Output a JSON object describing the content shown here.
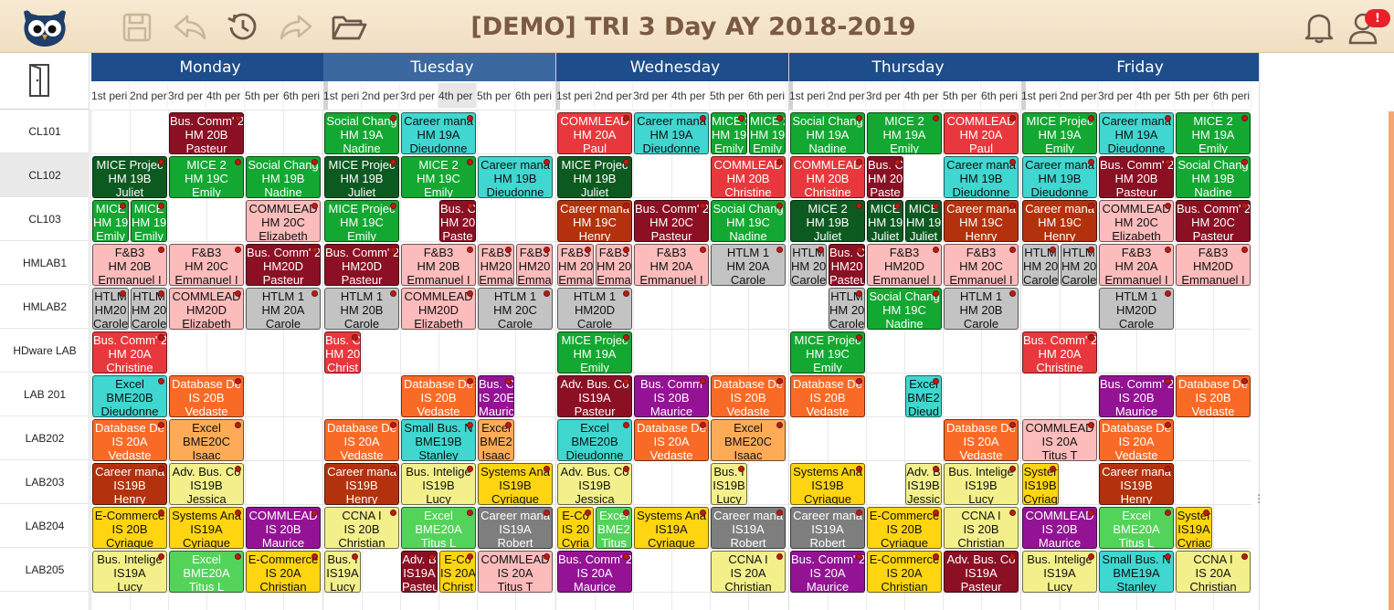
{
  "app": {
    "title": "[DEMO] TRI 3 Day AY 2018-2019",
    "notification_badge": "!"
  },
  "toolbar": [
    "owl-logo-icon",
    "save-icon",
    "undo-icon",
    "history-icon",
    "redo-icon",
    "folder-open-icon",
    "bell-icon",
    "user-icon"
  ],
  "side": {
    "exit_icon": "exit-door-icon"
  },
  "rooms": [
    "CL101",
    "CL102",
    "CL103",
    "HMLAB1",
    "HMLAB2",
    "HDware LAB",
    "LAB 201",
    "LAB202",
    "LAB203",
    "LAB204",
    "LAB205"
  ],
  "selected_room": "CL102",
  "days": [
    "Monday",
    "Tuesday",
    "Wednesday",
    "Thursday",
    "Friday"
  ],
  "selected_day": "Tuesday",
  "periods": [
    "1st peri",
    "2nd peri",
    "3rd per",
    "4th per",
    "5th per",
    "6th peri"
  ],
  "colors": {
    "dark_red": "#8b1024",
    "red": "#e8383d",
    "dark_green": "#0d5a21",
    "green": "#13a832",
    "light_green": "#53d35a",
    "teal": "#3fd7d0",
    "rust": "#b3320d",
    "salmon": "#fcbcbc",
    "gray": "#c3c3c3",
    "dark_gray": "#7e7e7e",
    "orange": "#fa6a27",
    "light_orange": "#fdab57",
    "purple": "#941394",
    "yellow": "#f3f08b",
    "gold": "#ffd511",
    "header_blue": "#1d4d8a"
  },
  "events": [
    [
      "0_2_0_2",
      "dark_red",
      "Bus. Comm' 2",
      "HM 20B",
      "Pasteur"
    ],
    [
      "1_0_0_2",
      "green",
      "Social Chang",
      "HM 19A",
      "Nadine"
    ],
    [
      "1_2_0_2",
      "teal",
      "Career mana",
      "HM 19A",
      "Dieudonne"
    ],
    [
      "2_0_0_2",
      "red",
      "COMMLEAD",
      "HM 20A",
      "Paul"
    ],
    [
      "2_2_0_2",
      "teal",
      "Career mana",
      "HM 19A",
      "Dieudonne"
    ],
    [
      "2_4_0_1",
      "green",
      "MICE 2",
      "HM 19",
      "Emily"
    ],
    [
      "2_5_0_1",
      "green",
      "MICE 2",
      "HM 19",
      "Emily"
    ],
    [
      "3_0_0_2",
      "green",
      "Social Chang",
      "HM 19A",
      "Nadine"
    ],
    [
      "3_2_0_2",
      "green",
      "MICE 2",
      "HM 19A",
      "Emily"
    ],
    [
      "3_4_0_2",
      "red",
      "COMMLEAD",
      "HM 20A",
      "Paul"
    ],
    [
      "4_0_0_2",
      "green",
      "MICE Projec",
      "HM 19A",
      "Emily"
    ],
    [
      "4_2_0_2",
      "teal",
      "Career mana",
      "HM 19A",
      "Dieudonne"
    ],
    [
      "4_4_0_2",
      "green",
      "MICE 2",
      "HM 19A",
      "Emily"
    ],
    [
      "0_0_1_2",
      "dark_green",
      "MICE Projec",
      "HM 19B",
      "Juliet"
    ],
    [
      "0_2_1_2",
      "green",
      "MICE 2",
      "HM 19C",
      "Emily"
    ],
    [
      "0_4_1_2",
      "green",
      "Social Chang",
      "HM 19B",
      "Nadine"
    ],
    [
      "1_0_1_2",
      "dark_green",
      "MICE Projec",
      "HM 19B",
      "Juliet"
    ],
    [
      "1_2_1_2",
      "green",
      "MICE 2",
      "HM 19C",
      "Emily"
    ],
    [
      "1_4_1_2",
      "teal",
      "Career mana",
      "HM 19B",
      "Dieudonne"
    ],
    [
      "2_0_1_2",
      "dark_green",
      "MICE Projec",
      "HM 19B",
      "Juliet"
    ],
    [
      "2_4_1_2",
      "red",
      "COMMLEAD",
      "HM 20B",
      "Christine"
    ],
    [
      "3_0_1_2",
      "red",
      "COMMLEAD",
      "HM 20B",
      "Christine"
    ],
    [
      "3_2_1_1",
      "dark_red",
      "Bus. C",
      "HM 20",
      "Paste"
    ],
    [
      "3_4_1_2",
      "teal",
      "Career mana",
      "HM 19B",
      "Dieudonne"
    ],
    [
      "4_0_1_2",
      "teal",
      "Career mana",
      "HM 19B",
      "Dieudonne"
    ],
    [
      "4_2_1_2",
      "dark_red",
      "Bus. Comm' 2",
      "HM 20B",
      "Pasteur"
    ],
    [
      "4_4_1_2",
      "green",
      "Social Chang",
      "HM 19B",
      "Nadine"
    ],
    [
      "0_0_2_1",
      "green",
      "MICE",
      "HM 19",
      "Emily"
    ],
    [
      "0_1_2_1",
      "green",
      "MICE",
      "HM 19",
      "Emily"
    ],
    [
      "0_4_2_2",
      "salmon",
      "COMMLEAD",
      "HM 20C",
      "Elizabeth"
    ],
    [
      "1_0_2_2",
      "green",
      "MICE Projec",
      "HM 19C",
      "Emily"
    ],
    [
      "1_3_2_1",
      "dark_red",
      "Bus. C",
      "HM 20",
      "Paste"
    ],
    [
      "2_0_2_2",
      "rust",
      "Career mana",
      "HM 19C",
      "Henry"
    ],
    [
      "2_2_2_2",
      "dark_red",
      "Bus. Comm' 2",
      "HM 20C",
      "Pasteur"
    ],
    [
      "2_4_2_2",
      "green",
      "Social Chang",
      "HM 19C",
      "Nadine"
    ],
    [
      "3_0_2_2",
      "dark_green",
      "MICE 2",
      "HM 19B",
      "Juliet"
    ],
    [
      "3_2_2_1",
      "dark_green",
      "MICE",
      "HM 19",
      "Juliet"
    ],
    [
      "3_3_2_1",
      "dark_green",
      "MICE",
      "HM 19",
      "Juliet"
    ],
    [
      "3_4_2_2",
      "rust",
      "Career mana",
      "HM 19C",
      "Henry"
    ],
    [
      "4_0_2_2",
      "rust",
      "Career mana",
      "HM 19C",
      "Henry"
    ],
    [
      "4_2_2_2",
      "salmon",
      "COMMLEAD",
      "HM 20C",
      "Elizabeth"
    ],
    [
      "4_4_2_2",
      "dark_red",
      "Bus. Comm' 2",
      "HM 20C",
      "Pasteur"
    ],
    [
      "0_0_3_2",
      "salmon",
      "F&B3",
      "HM 20B",
      "Emmanuel I"
    ],
    [
      "0_2_3_2",
      "salmon",
      "F&B3",
      "HM 20C",
      "Emmanuel I"
    ],
    [
      "0_4_3_2",
      "dark_red",
      "Bus. Comm' 2",
      "HM20D",
      "Pasteur"
    ],
    [
      "1_0_3_2",
      "dark_red",
      "Bus. Comm' 2",
      "HM20D",
      "Pasteur"
    ],
    [
      "1_2_3_2",
      "salmon",
      "F&B3",
      "HM 20B",
      "Emmanuel I"
    ],
    [
      "1_4_3_1",
      "salmon",
      "F&B3",
      "HM20",
      "Emma"
    ],
    [
      "1_5_3_1",
      "salmon",
      "F&B3",
      "HM20",
      "Emma"
    ],
    [
      "2_0_3_1",
      "salmon",
      "F&B3",
      "HM 20",
      "Emma"
    ],
    [
      "2_1_3_1",
      "salmon",
      "F&B3",
      "HM 20",
      "Emma"
    ],
    [
      "2_2_3_2",
      "salmon",
      "F&B3",
      "HM 20A",
      "Emmanuel I"
    ],
    [
      "2_4_3_2",
      "gray",
      "HTLM 1",
      "HM 20A",
      "Carole"
    ],
    [
      "3_0_3_1",
      "gray",
      "HTLM",
      "HM 20",
      "Carole"
    ],
    [
      "3_1_3_1",
      "dark_red",
      "Bus. C",
      "HM20",
      "Pasteu"
    ],
    [
      "3_2_3_2",
      "salmon",
      "F&B3",
      "HM20D",
      "Emmanuel I"
    ],
    [
      "3_4_3_2",
      "salmon",
      "F&B3",
      "HM 20C",
      "Emmanuel I"
    ],
    [
      "4_0_3_1",
      "gray",
      "HTLM",
      "HM 20",
      "Carole"
    ],
    [
      "4_1_3_1",
      "gray",
      "HTLM",
      "HM 20",
      "Carole"
    ],
    [
      "4_2_3_2",
      "salmon",
      "F&B3",
      "HM 20A",
      "Emmanuel I"
    ],
    [
      "4_4_3_2",
      "salmon",
      "F&B3",
      "HM20D",
      "Emmanuel I"
    ],
    [
      "0_0_4_1",
      "gray",
      "HTLM",
      "HM20",
      "Carole"
    ],
    [
      "0_1_4_1",
      "gray",
      "HTLM",
      "HM 20",
      "Carole"
    ],
    [
      "0_2_4_2",
      "salmon",
      "COMMLEAD",
      "HM20D",
      "Elizabeth"
    ],
    [
      "0_4_4_2",
      "gray",
      "HTLM 1",
      "HM 20A",
      "Carole"
    ],
    [
      "1_0_4_2",
      "gray",
      "HTLM 1",
      "HM 20B",
      "Carole"
    ],
    [
      "1_2_4_2",
      "salmon",
      "COMMLEAD",
      "HM20D",
      "Elizabeth"
    ],
    [
      "1_4_4_2",
      "gray",
      "HTLM 1",
      "HM 20C",
      "Carole"
    ],
    [
      "2_0_4_2",
      "gray",
      "HTLM 1",
      "HM20D",
      "Carole"
    ],
    [
      "3_1_4_1",
      "gray",
      "HTLM",
      "HM 20",
      "Carole"
    ],
    [
      "3_2_4_2",
      "green",
      "Social Chang",
      "HM 19C",
      "Nadine"
    ],
    [
      "3_4_4_2",
      "gray",
      "HTLM 1",
      "HM 20B",
      "Carole"
    ],
    [
      "4_2_4_2",
      "gray",
      "HTLM 1",
      "HM20D",
      "Carole"
    ],
    [
      "0_0_5_2",
      "red",
      "Bus. Comm' 2",
      "HM 20A",
      "Christine"
    ],
    [
      "1_0_5_1",
      "red",
      "Bus. C",
      "HM 20",
      "Christ"
    ],
    [
      "2_0_5_2",
      "green",
      "MICE Projec",
      "HM 19A",
      "Emily"
    ],
    [
      "3_0_5_2",
      "green",
      "MICE Projec",
      "HM 19C",
      "Emily"
    ],
    [
      "4_0_5_2",
      "red",
      "Bus. Comm' 2",
      "HM 20A",
      "Christine"
    ],
    [
      "0_0_6_2",
      "teal",
      "Excel",
      "BME20B",
      "Dieudonne"
    ],
    [
      "0_2_6_2",
      "orange",
      "Database De",
      "IS 20B",
      "Vedaste"
    ],
    [
      "1_2_6_2",
      "orange",
      "Database De",
      "IS 20B",
      "Vedaste"
    ],
    [
      "1_4_6_1",
      "purple",
      "Bus. C",
      "IS 20E",
      "Mauric"
    ],
    [
      "2_0_6_2",
      "dark_red",
      "Adv. Bus. Co",
      "IS19A",
      "Pasteur"
    ],
    [
      "2_2_6_2",
      "purple",
      "Bus. Comm",
      "IS 20B",
      "Maurice"
    ],
    [
      "2_4_6_2",
      "orange",
      "Database De",
      "IS 20B",
      "Vedaste"
    ],
    [
      "3_0_6_2",
      "orange",
      "Database De",
      "IS 20B",
      "Vedaste"
    ],
    [
      "3_3_6_1",
      "teal",
      "Excel",
      "BME2",
      "Dieud"
    ],
    [
      "4_2_6_2",
      "purple",
      "Bus. Comm' 2",
      "IS 20B",
      "Maurice"
    ],
    [
      "4_4_6_2",
      "orange",
      "Database De",
      "IS 20B",
      "Vedaste"
    ],
    [
      "0_0_7_2",
      "orange",
      "Database De",
      "IS 20A",
      "Vedaste"
    ],
    [
      "0_2_7_2",
      "light_orange",
      "Excel",
      "BME20C",
      "Isaac"
    ],
    [
      "1_0_7_2",
      "orange",
      "Database De",
      "IS 20A",
      "Vedaste"
    ],
    [
      "1_2_7_2",
      "teal",
      "Small Bus. N",
      "BME19B",
      "Stanley"
    ],
    [
      "1_4_7_1",
      "light_orange",
      "Excel",
      "BME2",
      "Isaac"
    ],
    [
      "2_0_7_2",
      "teal",
      "Excel",
      "BME20B",
      "Dieudonne"
    ],
    [
      "2_2_7_2",
      "orange",
      "Database De",
      "IS 20A",
      "Vedaste"
    ],
    [
      "2_4_7_2",
      "light_orange",
      "Excel",
      "BME20C",
      "Isaac"
    ],
    [
      "3_4_7_2",
      "orange",
      "Database De",
      "IS 20A",
      "Vedaste"
    ],
    [
      "4_0_7_2",
      "salmon",
      "COMMLEAD",
      "IS 20A",
      "Titus T"
    ],
    [
      "4_2_7_2",
      "orange",
      "Database De",
      "IS 20A",
      "Vedaste"
    ],
    [
      "0_0_8_2",
      "rust",
      "Career mana",
      "IS19B",
      "Henry"
    ],
    [
      "0_2_8_2",
      "yellow",
      "Adv. Bus. Co",
      "IS19B",
      "Jessica"
    ],
    [
      "1_0_8_2",
      "rust",
      "Career mana",
      "IS19B",
      "Henry"
    ],
    [
      "1_2_8_2",
      "yellow",
      "Bus. Intelige",
      "IS19B",
      "Lucy"
    ],
    [
      "1_4_8_2",
      "gold",
      "Systems Ana",
      "IS19B",
      "Cyriaque"
    ],
    [
      "2_0_8_2",
      "yellow",
      "Adv. Bus. Co",
      "IS19B",
      "Jessica"
    ],
    [
      "2_4_8_1",
      "yellow",
      "Bus. I",
      "IS19B",
      "Lucy"
    ],
    [
      "3_0_8_2",
      "gold",
      "Systems Ana",
      "IS19B",
      "Cyriaque"
    ],
    [
      "3_3_8_1",
      "yellow",
      "Adv. B",
      "IS19B",
      "Jessic"
    ],
    [
      "3_4_8_2",
      "yellow",
      "Bus. Intelige",
      "IS19B",
      "Lucy"
    ],
    [
      "4_0_8_1",
      "gold",
      "Syster",
      "IS19B",
      "Cyriaq"
    ],
    [
      "4_2_8_2",
      "rust",
      "Career mana",
      "IS19B",
      "Henry"
    ],
    [
      "0_0_9_2",
      "gold",
      "E-Commerce",
      "IS 20B",
      "Cyriaque"
    ],
    [
      "0_2_9_2",
      "gold",
      "Systems Ana",
      "IS19A",
      "Cyriaque"
    ],
    [
      "0_4_9_2",
      "purple",
      "COMMLEAD",
      "IS 20B",
      "Maurice"
    ],
    [
      "1_0_9_2",
      "yellow",
      "CCNA I",
      "IS 20B",
      "Christian"
    ],
    [
      "1_2_9_2",
      "light_green",
      "Excel",
      "BME20A",
      "Titus L"
    ],
    [
      "1_4_9_2",
      "dark_gray",
      "Career mana",
      "IS19A",
      "Robert"
    ],
    [
      "2_0_9_1",
      "gold",
      "E-Co",
      "IS 20",
      "Cyria"
    ],
    [
      "2_1_9_1",
      "light_green",
      "Excel",
      "BME2",
      "Titus"
    ],
    [
      "2_2_9_2",
      "gold",
      "Systems Ana",
      "IS19A",
      "Cyriaque"
    ],
    [
      "2_4_9_2",
      "dark_gray",
      "Career mana",
      "IS19A",
      "Robert"
    ],
    [
      "3_0_9_2",
      "dark_gray",
      "Career mana",
      "IS19A",
      "Robert"
    ],
    [
      "3_2_9_2",
      "gold",
      "E-Commerce",
      "IS 20B",
      "Cyriaque"
    ],
    [
      "3_4_9_2",
      "yellow",
      "CCNA I",
      "IS 20B",
      "Christian"
    ],
    [
      "4_0_9_2",
      "purple",
      "COMMLEAD",
      "IS 20B",
      "Maurice"
    ],
    [
      "4_2_9_2",
      "light_green",
      "Excel",
      "BME20A",
      "Titus L"
    ],
    [
      "4_4_9_1",
      "gold",
      "Syster",
      "IS19A",
      "Cyriac"
    ],
    [
      "0_0_10_2",
      "yellow",
      "Bus. Intelige",
      "IS19A",
      "Lucy"
    ],
    [
      "0_2_10_2",
      "light_green",
      "Excel",
      "BME20A",
      "Titus L"
    ],
    [
      "0_4_10_2",
      "gold",
      "E-Commerce",
      "IS 20A",
      "Christian"
    ],
    [
      "1_0_10_1",
      "yellow",
      "Bus. I",
      "IS19A",
      "Lucy"
    ],
    [
      "1_2_10_1",
      "dark_red",
      "Adv. B",
      "IS19A",
      "Pasteu"
    ],
    [
      "1_3_10_1",
      "gold",
      "E-Co",
      "IS 20A",
      "Christ"
    ],
    [
      "1_4_10_2",
      "salmon",
      "COMMLEAD",
      "IS 20A",
      "Titus T"
    ],
    [
      "2_0_10_2",
      "purple",
      "Bus. Comm' 2",
      "IS 20A",
      "Maurice"
    ],
    [
      "2_4_10_2",
      "yellow",
      "CCNA I",
      "IS 20A",
      "Christian"
    ],
    [
      "3_0_10_2",
      "purple",
      "Bus. Comm' 2",
      "IS 20A",
      "Maurice"
    ],
    [
      "3_2_10_2",
      "gold",
      "E-Commerce",
      "IS 20A",
      "Christian"
    ],
    [
      "3_4_10_2",
      "dark_red",
      "Adv. Bus. Co",
      "IS19A",
      "Pasteur"
    ],
    [
      "4_0_10_2",
      "yellow",
      "Bus. Intelige",
      "IS19A",
      "Lucy"
    ],
    [
      "4_2_10_2",
      "teal",
      "Small Bus. N",
      "BME19A",
      "Stanley"
    ],
    [
      "4_4_10_2",
      "yellow",
      "CCNA I",
      "IS 20A",
      "Christian"
    ]
  ]
}
